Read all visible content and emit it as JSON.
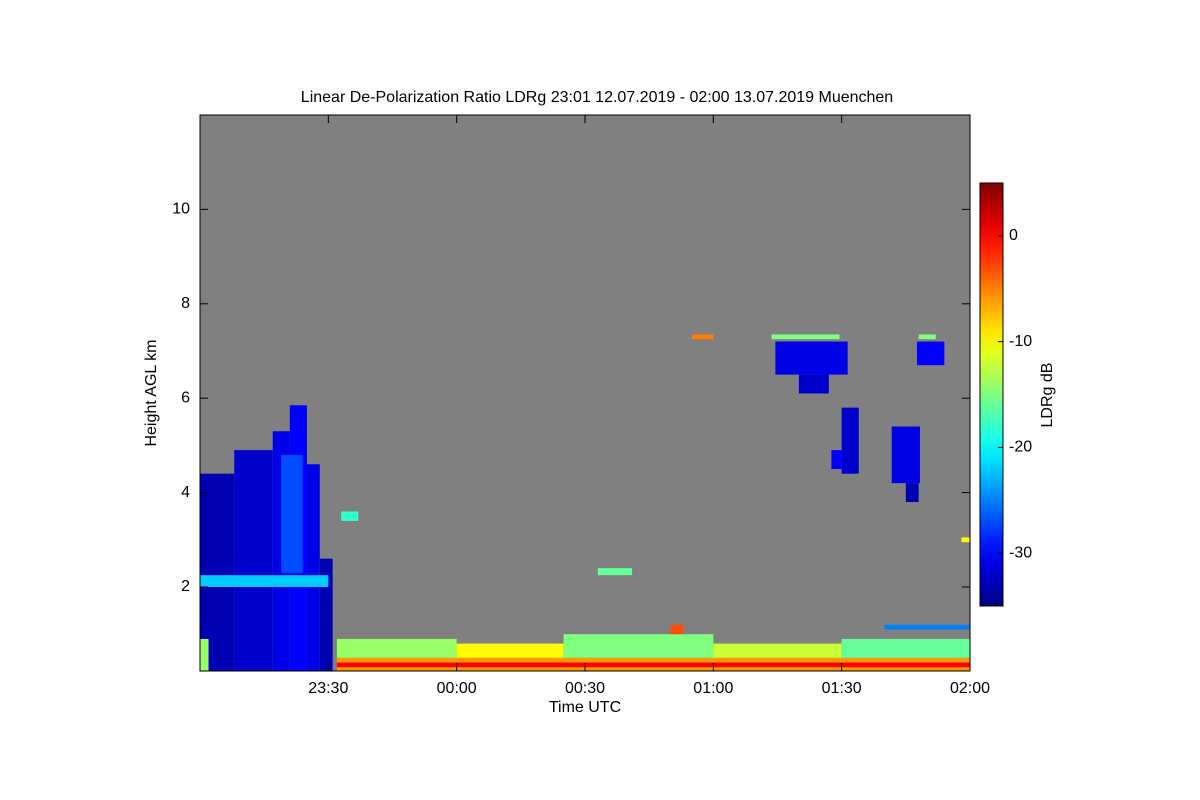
{
  "chart_data": {
    "type": "heatmap",
    "title": "Linear De-Polarization Ratio LDRg   23:01 12.07.2019 - 02:00 13.07.2019 Muenchen",
    "x_label": "Time UTC",
    "y_label": "Height AGL km",
    "colorbar_label": "LDRg dB",
    "colormap": "jet",
    "background": "#808080",
    "xlim": [
      0,
      180
    ],
    "xticks": [
      {
        "value": 30,
        "label": "23:30"
      },
      {
        "value": 60,
        "label": "00:00"
      },
      {
        "value": 90,
        "label": "00:30"
      },
      {
        "value": 120,
        "label": "01:00"
      },
      {
        "value": 150,
        "label": "01:30"
      },
      {
        "value": 180,
        "label": "02:00"
      }
    ],
    "ylim": [
      0.22,
      12
    ],
    "yticks": [
      2,
      4,
      6,
      8,
      10
    ],
    "clim": [
      -35,
      5
    ],
    "cticks": [
      -30,
      -20,
      -10,
      0
    ],
    "cells": [
      {
        "t": [
          0,
          8
        ],
        "h": [
          0.22,
          4.4
        ],
        "value": -33
      },
      {
        "t": [
          8,
          17
        ],
        "h": [
          0.22,
          4.9
        ],
        "value": -32
      },
      {
        "t": [
          17,
          21
        ],
        "h": [
          0.22,
          5.3
        ],
        "value": -31
      },
      {
        "t": [
          21,
          25
        ],
        "h": [
          0.22,
          5.85
        ],
        "value": -30
      },
      {
        "t": [
          25,
          28
        ],
        "h": [
          0.22,
          4.6
        ],
        "value": -31
      },
      {
        "t": [
          28,
          31
        ],
        "h": [
          0.22,
          2.6
        ],
        "value": -33
      },
      {
        "t": [
          0,
          30
        ],
        "h": [
          2.0,
          2.25
        ],
        "value": -22
      },
      {
        "t": [
          19,
          24
        ],
        "h": [
          2.3,
          4.8
        ],
        "value": -27
      },
      {
        "t": [
          0,
          2
        ],
        "h": [
          0.22,
          0.9
        ],
        "value": -14
      },
      {
        "t": [
          32,
          180
        ],
        "h": [
          0.22,
          0.5
        ],
        "value": -6
      },
      {
        "t": [
          32,
          180
        ],
        "h": [
          0.3,
          0.4
        ],
        "value": 0
      },
      {
        "t": [
          32,
          60
        ],
        "h": [
          0.5,
          0.9
        ],
        "value": -14
      },
      {
        "t": [
          60,
          85
        ],
        "h": [
          0.5,
          0.8
        ],
        "value": -10
      },
      {
        "t": [
          85,
          120
        ],
        "h": [
          0.5,
          1.0
        ],
        "value": -15
      },
      {
        "t": [
          120,
          150
        ],
        "h": [
          0.5,
          0.8
        ],
        "value": -12
      },
      {
        "t": [
          150,
          180
        ],
        "h": [
          0.5,
          0.9
        ],
        "value": -16
      },
      {
        "t": [
          110,
          113
        ],
        "h": [
          1.0,
          1.2
        ],
        "value": -3
      },
      {
        "t": [
          160,
          180
        ],
        "h": [
          1.1,
          1.2
        ],
        "value": -25
      },
      {
        "t": [
          33,
          37
        ],
        "h": [
          3.4,
          3.6
        ],
        "value": -18
      },
      {
        "t": [
          93,
          101
        ],
        "h": [
          2.25,
          2.4
        ],
        "value": -16
      },
      {
        "t": [
          115,
          120
        ],
        "h": [
          7.25,
          7.35
        ],
        "value": -5
      },
      {
        "t": [
          133.6,
          149.5
        ],
        "h": [
          7.25,
          7.35
        ],
        "value": -15
      },
      {
        "t": [
          134.5,
          151.4
        ],
        "h": [
          6.5,
          7.2
        ],
        "value": -31
      },
      {
        "t": [
          140,
          147
        ],
        "h": [
          6.1,
          6.5
        ],
        "value": -32
      },
      {
        "t": [
          167.6,
          174
        ],
        "h": [
          6.7,
          7.2
        ],
        "value": -30
      },
      {
        "t": [
          168,
          172
        ],
        "h": [
          7.25,
          7.35
        ],
        "value": -15
      },
      {
        "t": [
          147.6,
          150
        ],
        "h": [
          4.5,
          4.9
        ],
        "value": -30
      },
      {
        "t": [
          150,
          154
        ],
        "h": [
          4.4,
          5.8
        ],
        "value": -32
      },
      {
        "t": [
          161.7,
          168.3
        ],
        "h": [
          4.2,
          5.4
        ],
        "value": -31
      },
      {
        "t": [
          165,
          168
        ],
        "h": [
          3.8,
          4.2
        ],
        "value": -33
      },
      {
        "t": [
          178,
          180
        ],
        "h": [
          2.95,
          3.05
        ],
        "value": -10
      }
    ]
  }
}
